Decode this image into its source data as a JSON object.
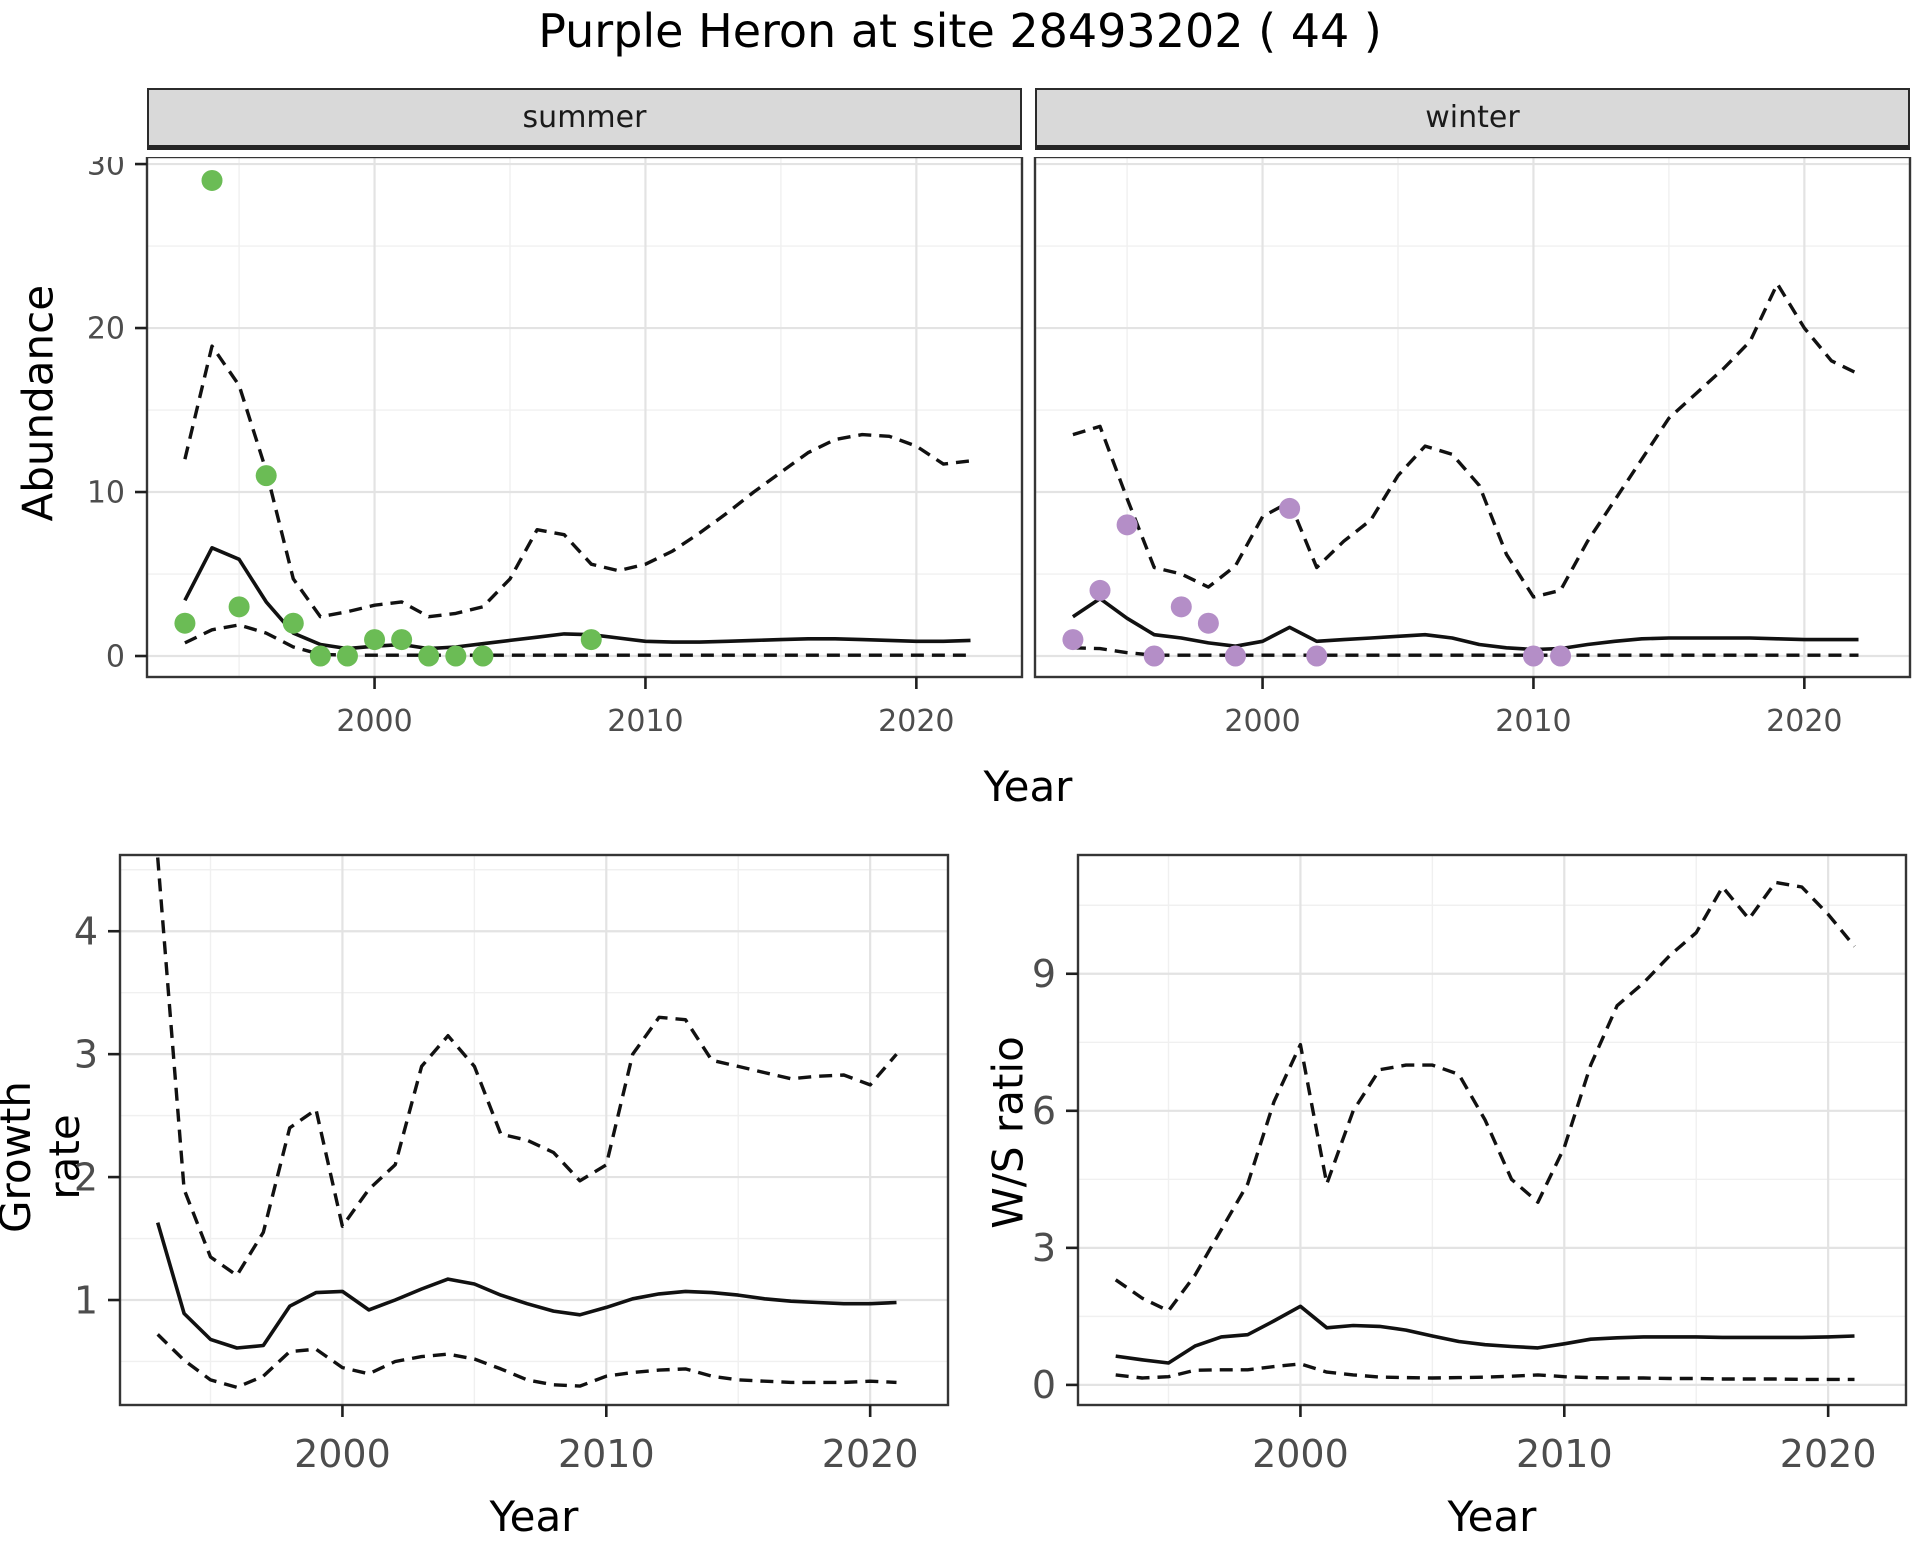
{
  "title": "Purple Heron at site 28493202 ( 44 )",
  "top": {
    "ylabel": "Abundance",
    "xlabel": "Year",
    "facets": [
      "summer",
      "winter"
    ]
  },
  "bottom_left": {
    "ylabel": "Growth rate",
    "xlabel": "Year"
  },
  "bottom_right": {
    "ylabel": "W/S ratio",
    "xlabel": "Year"
  },
  "theme": {
    "line_color": "#111111",
    "point_green": "#6bbc55",
    "point_purple": "#b48ec7",
    "strip_bg": "#d9d9d9",
    "panel_border": "#353535",
    "grid_major": "#e3e3e3",
    "grid_minor": "#f0f0f0",
    "tick_color": "#1f1f1f",
    "tick_label_color": "#4d4d4d"
  },
  "chart_data": [
    {
      "type": "line",
      "id": "abundance-summer",
      "facet": "summer",
      "title": "Abundance - summer",
      "xlabel": "Year",
      "ylabel": "Abundance",
      "xlim": [
        1991.6,
        2023.9
      ],
      "ylim": [
        -1.28,
        30.43
      ],
      "x_ticks": [
        2000,
        2010,
        2020
      ],
      "x_minor": [
        1995,
        2005,
        2015
      ],
      "y_ticks": [
        0,
        10,
        20,
        30
      ],
      "y_minor": [
        5,
        15,
        25
      ],
      "grid": true,
      "legend": "none",
      "x": [
        1993,
        1994,
        1995,
        1996,
        1997,
        1998,
        1999,
        2000,
        2001,
        2002,
        2003,
        2004,
        2005,
        2006,
        2007,
        2008,
        2009,
        2010,
        2011,
        2012,
        2013,
        2014,
        2015,
        2016,
        2017,
        2018,
        2019,
        2020,
        2021,
        2022
      ],
      "series": [
        {
          "name": "upper_ci",
          "style": "dashed",
          "values": [
            12.0,
            18.9,
            16.5,
            11.3,
            4.7,
            2.4,
            2.7,
            3.1,
            3.3,
            2.4,
            2.6,
            3.0,
            4.7,
            7.7,
            7.4,
            5.6,
            5.2,
            5.6,
            6.4,
            7.5,
            8.7,
            10.0,
            11.2,
            12.4,
            13.2,
            13.5,
            13.4,
            12.8,
            11.7,
            11.9
          ]
        },
        {
          "name": "median",
          "style": "solid",
          "values": [
            3.4,
            6.6,
            5.9,
            3.3,
            1.4,
            0.7,
            0.45,
            0.6,
            0.7,
            0.45,
            0.55,
            0.75,
            0.95,
            1.15,
            1.35,
            1.3,
            1.1,
            0.9,
            0.85,
            0.85,
            0.9,
            0.95,
            1.0,
            1.05,
            1.05,
            1.0,
            0.95,
            0.9,
            0.9,
            0.95
          ]
        },
        {
          "name": "lower_ci",
          "style": "dashed",
          "values": [
            0.8,
            1.6,
            1.9,
            1.4,
            0.55,
            0.1,
            0.05,
            0.05,
            0.05,
            0.05,
            0.05,
            0.05,
            0.05,
            0.05,
            0.05,
            0.05,
            0.05,
            0.05,
            0.05,
            0.05,
            0.05,
            0.05,
            0.05,
            0.05,
            0.05,
            0.05,
            0.05,
            0.05,
            0.05,
            0.05
          ]
        }
      ],
      "points": {
        "name": "observed-counts",
        "color_key": "point_green",
        "x": [
          1993,
          1994,
          1995,
          1996,
          1997,
          1998,
          1999,
          2000,
          2001,
          2002,
          2003,
          2004,
          2008
        ],
        "y": [
          2,
          29,
          3,
          11,
          2,
          0,
          0,
          1,
          1,
          0,
          0,
          0,
          1
        ]
      }
    },
    {
      "type": "line",
      "id": "abundance-winter",
      "facet": "winter",
      "title": "Abundance - winter",
      "xlabel": "Year",
      "ylabel": "Abundance",
      "xlim": [
        1991.6,
        2023.9
      ],
      "ylim": [
        -1.28,
        30.43
      ],
      "x_ticks": [
        2000,
        2010,
        2020
      ],
      "x_minor": [
        1995,
        2005,
        2015
      ],
      "y_ticks": [
        0,
        10,
        20,
        30
      ],
      "y_minor": [
        5,
        15,
        25
      ],
      "grid": true,
      "legend": "none",
      "x": [
        1993,
        1994,
        1995,
        1996,
        1997,
        1998,
        1999,
        2000,
        2001,
        2002,
        2003,
        2004,
        2005,
        2006,
        2007,
        2008,
        2009,
        2010,
        2011,
        2012,
        2013,
        2014,
        2015,
        2016,
        2017,
        2018,
        2019,
        2020,
        2021,
        2022
      ],
      "series": [
        {
          "name": "upper_ci",
          "style": "dashed",
          "values": [
            13.5,
            14.0,
            9.6,
            5.4,
            5.0,
            4.2,
            5.5,
            8.5,
            9.4,
            5.4,
            7.0,
            8.3,
            11.0,
            12.8,
            12.3,
            10.4,
            6.2,
            3.6,
            4.0,
            7.0,
            9.5,
            12.0,
            14.5,
            16.0,
            17.5,
            19.2,
            22.7,
            20.0,
            18.0,
            17.2
          ]
        },
        {
          "name": "median",
          "style": "solid",
          "values": [
            2.4,
            3.5,
            2.3,
            1.3,
            1.1,
            0.8,
            0.6,
            0.9,
            1.75,
            0.9,
            1.0,
            1.1,
            1.2,
            1.3,
            1.1,
            0.7,
            0.5,
            0.4,
            0.45,
            0.7,
            0.9,
            1.05,
            1.1,
            1.1,
            1.1,
            1.1,
            1.05,
            1.0,
            1.0,
            1.0
          ]
        },
        {
          "name": "lower_ci",
          "style": "dashed",
          "values": [
            0.5,
            0.45,
            0.2,
            0.05,
            0.05,
            0.05,
            0.05,
            0.05,
            0.05,
            0.05,
            0.05,
            0.05,
            0.05,
            0.05,
            0.05,
            0.05,
            0.05,
            0.05,
            0.05,
            0.05,
            0.05,
            0.05,
            0.05,
            0.05,
            0.05,
            0.05,
            0.05,
            0.05,
            0.05,
            0.05
          ]
        }
      ],
      "points": {
        "name": "observed-counts",
        "color_key": "point_purple",
        "x": [
          1993,
          1994,
          1995,
          1996,
          1997,
          1998,
          1999,
          2001,
          2002,
          2010,
          2011
        ],
        "y": [
          1,
          4,
          8,
          0,
          3,
          2,
          0,
          9,
          0,
          0,
          0
        ]
      }
    },
    {
      "type": "line",
      "id": "growth-rate",
      "facet": null,
      "title": "Growth rate",
      "xlabel": "Year",
      "ylabel": "Growth rate",
      "xlim": [
        1991.57,
        2022.95
      ],
      "ylim": [
        0.146,
        4.62
      ],
      "x_ticks": [
        2000,
        2010,
        2020
      ],
      "x_minor": [
        1995,
        2005,
        2015
      ],
      "y_ticks": [
        1,
        2,
        3,
        4
      ],
      "y_minor": [
        0.5,
        1.5,
        2.5,
        3.5,
        4.5
      ],
      "grid": true,
      "legend": "none",
      "x": [
        1993,
        1994,
        1995,
        1996,
        1997,
        1998,
        1999,
        2000,
        2001,
        2002,
        2003,
        2004,
        2005,
        2006,
        2007,
        2008,
        2009,
        2010,
        2011,
        2012,
        2013,
        2014,
        2015,
        2016,
        2017,
        2018,
        2019,
        2020,
        2021
      ],
      "series": [
        {
          "name": "upper_ci",
          "style": "dashed",
          "values": [
            4.6,
            1.9,
            1.35,
            1.2,
            1.55,
            2.4,
            2.55,
            1.6,
            1.9,
            2.1,
            2.9,
            3.15,
            2.9,
            2.35,
            2.3,
            2.2,
            1.97,
            2.1,
            3.0,
            3.3,
            3.28,
            2.95,
            2.9,
            2.85,
            2.8,
            2.82,
            2.83,
            2.75,
            3.0
          ]
        },
        {
          "name": "median",
          "style": "solid",
          "values": [
            1.63,
            0.89,
            0.68,
            0.61,
            0.63,
            0.95,
            1.06,
            1.07,
            0.92,
            1.0,
            1.09,
            1.17,
            1.13,
            1.04,
            0.97,
            0.91,
            0.88,
            0.94,
            1.01,
            1.05,
            1.07,
            1.06,
            1.04,
            1.01,
            0.99,
            0.98,
            0.97,
            0.97,
            0.98
          ]
        },
        {
          "name": "lower_ci",
          "style": "dashed",
          "values": [
            0.72,
            0.51,
            0.35,
            0.29,
            0.38,
            0.58,
            0.6,
            0.45,
            0.4,
            0.5,
            0.54,
            0.56,
            0.52,
            0.44,
            0.35,
            0.31,
            0.3,
            0.38,
            0.41,
            0.43,
            0.44,
            0.38,
            0.35,
            0.34,
            0.33,
            0.33,
            0.33,
            0.34,
            0.33
          ]
        }
      ],
      "points": null
    },
    {
      "type": "line",
      "id": "ws-ratio",
      "facet": null,
      "title": "W/S ratio",
      "xlabel": "Year",
      "ylabel": "W/S ratio",
      "xlim": [
        1991.57,
        2022.95
      ],
      "ylim": [
        -0.44,
        11.6
      ],
      "x_ticks": [
        2000,
        2010,
        2020
      ],
      "x_minor": [
        1995,
        2005,
        2015
      ],
      "y_ticks": [
        0,
        3,
        6,
        9
      ],
      "y_minor": [
        1.5,
        4.5,
        7.5,
        10.5
      ],
      "grid": true,
      "legend": "none",
      "x": [
        1993,
        1994,
        1995,
        1996,
        1997,
        1998,
        1999,
        2000,
        2001,
        2002,
        2003,
        2004,
        2005,
        2006,
        2007,
        2008,
        2009,
        2010,
        2011,
        2012,
        2013,
        2014,
        2015,
        2016,
        2017,
        2018,
        2019,
        2020,
        2021
      ],
      "series": [
        {
          "name": "upper_ci",
          "style": "dashed",
          "values": [
            2.3,
            1.9,
            1.62,
            2.4,
            3.4,
            4.4,
            6.2,
            7.45,
            4.4,
            6.0,
            6.9,
            7.0,
            7.0,
            6.8,
            5.8,
            4.5,
            4.0,
            5.2,
            7.0,
            8.3,
            8.8,
            9.4,
            9.9,
            10.9,
            10.2,
            11.0,
            10.9,
            10.3,
            9.6
          ]
        },
        {
          "name": "median",
          "style": "solid",
          "values": [
            0.63,
            0.55,
            0.48,
            0.85,
            1.05,
            1.1,
            1.4,
            1.72,
            1.25,
            1.3,
            1.28,
            1.2,
            1.07,
            0.95,
            0.88,
            0.84,
            0.81,
            0.9,
            1.0,
            1.03,
            1.05,
            1.05,
            1.05,
            1.04,
            1.04,
            1.04,
            1.04,
            1.05,
            1.07
          ]
        },
        {
          "name": "lower_ci",
          "style": "dashed",
          "values": [
            0.22,
            0.15,
            0.18,
            0.32,
            0.33,
            0.33,
            0.4,
            0.46,
            0.28,
            0.22,
            0.17,
            0.16,
            0.15,
            0.16,
            0.17,
            0.19,
            0.22,
            0.18,
            0.16,
            0.15,
            0.15,
            0.14,
            0.14,
            0.13,
            0.13,
            0.13,
            0.12,
            0.12,
            0.12
          ]
        }
      ],
      "points": null
    }
  ]
}
